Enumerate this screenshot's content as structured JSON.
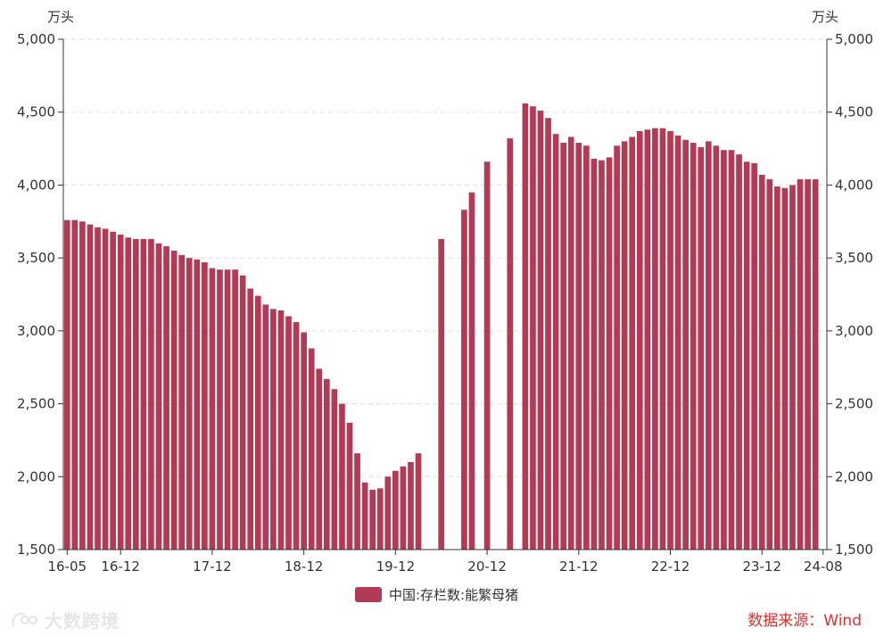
{
  "colors": {
    "bar": "#b23a55",
    "axis": "#333333",
    "grid": "#dddddd",
    "source": "#e0302e"
  },
  "units": {
    "left": "万头",
    "right": "万头"
  },
  "legend": {
    "label": "中国:存栏数:能繁母猪"
  },
  "source": "数据来源：Wind",
  "watermark": "大数跨境",
  "chart_data": {
    "type": "bar",
    "ylim": [
      1500,
      5000
    ],
    "yticks": [
      "1,500",
      "2,000",
      "2,500",
      "3,000",
      "3,500",
      "4,000",
      "4,500",
      "5,000"
    ],
    "ytick_values": [
      1500,
      2000,
      2500,
      3000,
      3500,
      4000,
      4500,
      5000
    ],
    "grid": true,
    "legend_position": "bottom-center",
    "x_tick_labels": [
      {
        "label": "16-05",
        "index": 0
      },
      {
        "label": "16-12",
        "index": 7
      },
      {
        "label": "17-12",
        "index": 19
      },
      {
        "label": "18-12",
        "index": 31
      },
      {
        "label": "19-12",
        "index": 43
      },
      {
        "label": "20-12",
        "index": 55
      },
      {
        "label": "21-12",
        "index": 67
      },
      {
        "label": "22-12",
        "index": 79
      },
      {
        "label": "23-12",
        "index": 91
      },
      {
        "label": "24-08",
        "index": 99
      }
    ],
    "categories": [
      "16-05",
      "16-06",
      "16-07",
      "16-08",
      "16-09",
      "16-10",
      "16-11",
      "16-12",
      "17-01",
      "17-02",
      "17-03",
      "17-04",
      "17-05",
      "17-06",
      "17-07",
      "17-08",
      "17-09",
      "17-10",
      "17-11",
      "17-12",
      "18-01",
      "18-02",
      "18-03",
      "18-04",
      "18-05",
      "18-06",
      "18-07",
      "18-08",
      "18-09",
      "18-10",
      "18-11",
      "18-12",
      "19-01",
      "19-02",
      "19-03",
      "19-04",
      "19-05",
      "19-06",
      "19-07",
      "19-08",
      "19-09",
      "19-10",
      "19-11",
      "19-12",
      "20-01",
      "20-02",
      "20-03",
      "20-04",
      "20-05",
      "20-06",
      "20-07",
      "20-08",
      "20-09",
      "20-10",
      "20-11",
      "20-12",
      "21-01",
      "21-02",
      "21-03",
      "21-04",
      "21-05",
      "21-06",
      "21-07",
      "21-08",
      "21-09",
      "21-10",
      "21-11",
      "21-12",
      "22-01",
      "22-02",
      "22-03",
      "22-04",
      "22-05",
      "22-06",
      "22-07",
      "22-08",
      "22-09",
      "22-10",
      "22-11",
      "22-12",
      "23-01",
      "23-02",
      "23-03",
      "23-04",
      "23-05",
      "23-06",
      "23-07",
      "23-08",
      "23-09",
      "23-10",
      "23-11",
      "23-12",
      "24-01",
      "24-02",
      "24-03",
      "24-04",
      "24-05",
      "24-06",
      "24-07",
      "24-08"
    ],
    "series": [
      {
        "name": "中国:存栏数:能繁母猪",
        "values": [
          3760,
          3760,
          3750,
          3730,
          3710,
          3700,
          3680,
          3660,
          3640,
          3630,
          3630,
          3630,
          3600,
          3580,
          3550,
          3520,
          3500,
          3490,
          3470,
          3430,
          3420,
          3420,
          3420,
          3380,
          3290,
          3240,
          3180,
          3150,
          3140,
          3100,
          3060,
          2990,
          2880,
          2740,
          2670,
          2600,
          2500,
          2370,
          2160,
          1960,
          1910,
          1920,
          2000,
          2040,
          2070,
          2100,
          2160,
          null,
          null,
          3630,
          null,
          null,
          3830,
          3950,
          null,
          4160,
          null,
          null,
          4320,
          null,
          4560,
          4540,
          4510,
          4460,
          4350,
          4290,
          4330,
          4290,
          4270,
          4180,
          4170,
          4190,
          4270,
          4300,
          4330,
          4370,
          4380,
          4390,
          4390,
          4370,
          4340,
          4310,
          4290,
          4260,
          4300,
          4270,
          4240,
          4240,
          4210,
          4160,
          4150,
          4070,
          4040,
          3990,
          3980,
          4000,
          4040,
          4040,
          4040,
          null
        ]
      }
    ]
  }
}
